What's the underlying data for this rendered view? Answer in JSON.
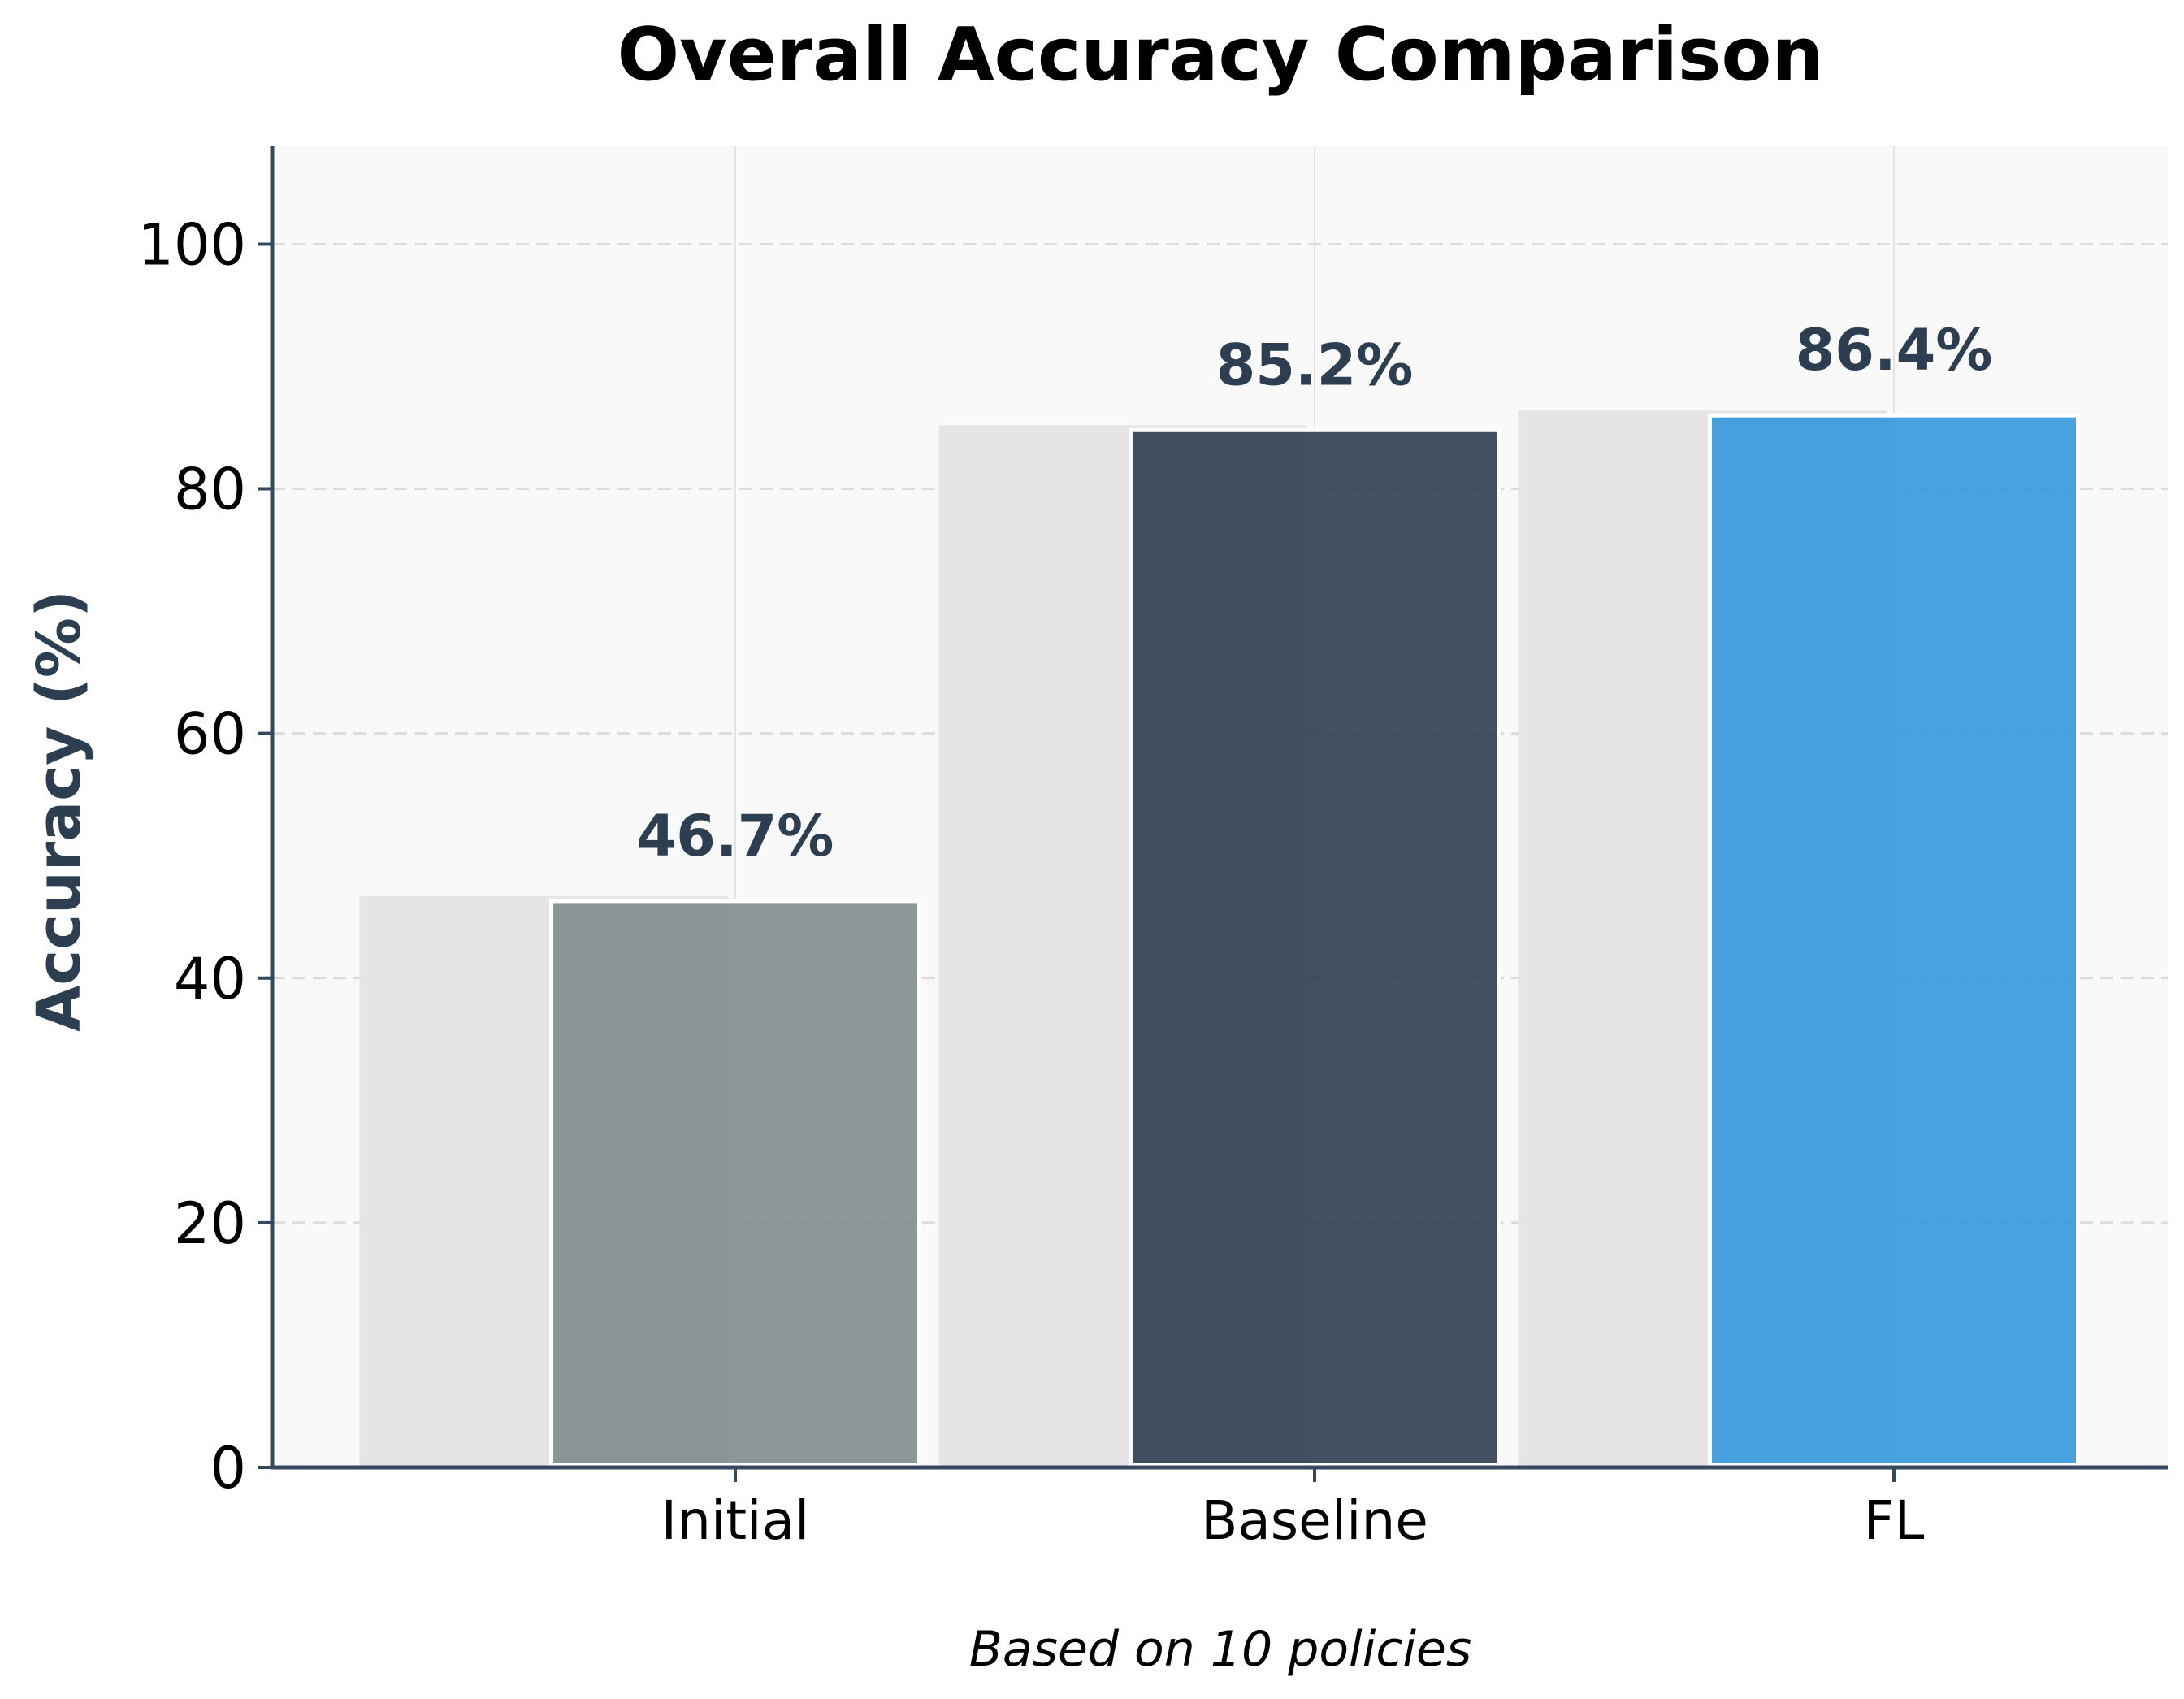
{
  "chart_data": {
    "type": "bar",
    "title": "Overall Accuracy Comparison",
    "subtitle": "Based on 10 policies",
    "xlabel": "",
    "ylabel": "Accuracy (%)",
    "categories": [
      "Initial",
      "Baseline",
      "FL"
    ],
    "values": [
      46.7,
      85.2,
      86.4
    ],
    "value_labels": [
      "46.7%",
      "85.2%",
      "86.4%"
    ],
    "ylim": [
      0,
      108
    ],
    "yticks": [
      0,
      20,
      40,
      60,
      80,
      100
    ],
    "ytick_labels": [
      "0",
      "20",
      "40",
      "60",
      "80",
      "100"
    ],
    "grid": "horizontal-dashed",
    "legend": "none",
    "colors": {
      "bars": [
        "#7f8c8d",
        "#2c3e50",
        "#3498db"
      ],
      "shadow": "#e5e5e5",
      "axis": "#34495e",
      "label": "#2c3e50",
      "plot_background": "#f9f9f9"
    }
  }
}
